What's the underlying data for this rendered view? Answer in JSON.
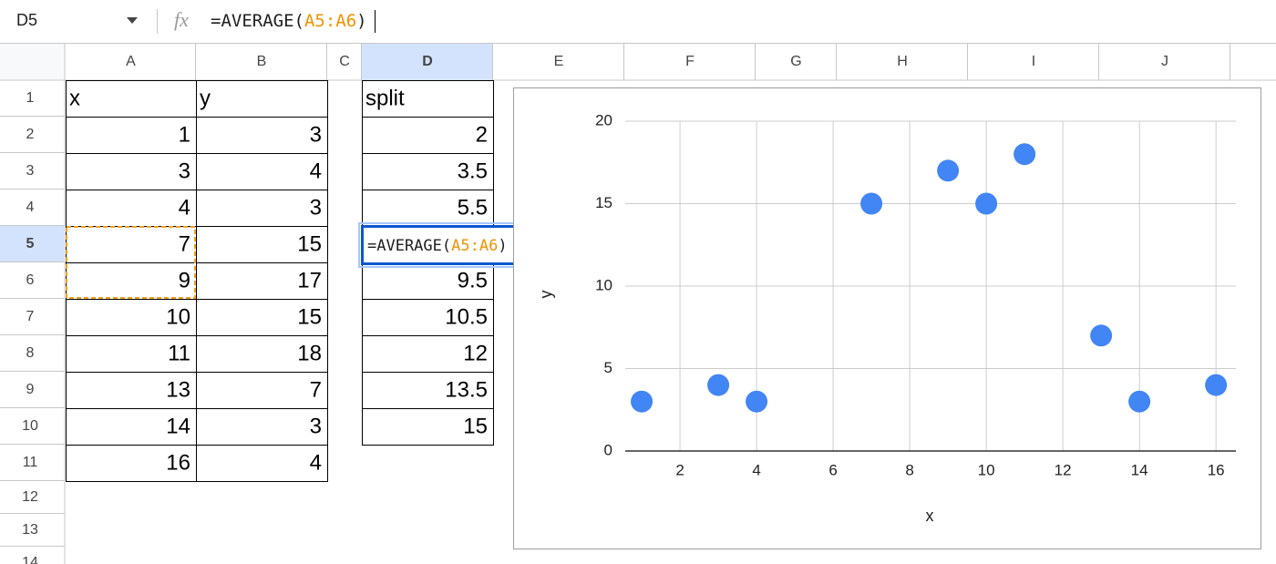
{
  "name_box": "D5",
  "formula_icon": "fx",
  "formula": {
    "prefix": "=AVERAGE(",
    "range": "A5:A6",
    "suffix": ")"
  },
  "columns": [
    "A",
    "B",
    "C",
    "D",
    "E",
    "F",
    "G",
    "H",
    "I",
    "J"
  ],
  "rows": [
    1,
    2,
    3,
    4,
    5,
    6,
    7,
    8,
    9,
    10,
    11,
    12,
    13,
    14
  ],
  "table": {
    "headers": [
      "x",
      "y",
      "split"
    ],
    "x": [
      1,
      3,
      4,
      7,
      9,
      10,
      11,
      13,
      14,
      16
    ],
    "y": [
      3,
      4,
      3,
      15,
      17,
      15,
      18,
      7,
      3,
      4
    ],
    "split": [
      2,
      3.5,
      5.5,
      null,
      9.5,
      10.5,
      12,
      13.5,
      15
    ]
  },
  "chart_data": {
    "type": "scatter",
    "x_label": "x",
    "y_label": "y",
    "x": [
      1,
      3,
      4,
      7,
      9,
      10,
      11,
      13,
      14,
      16
    ],
    "values": [
      3,
      4,
      3,
      15,
      17,
      15,
      18,
      7,
      3,
      4
    ],
    "color": "#4285f4",
    "xlim": [
      0.57,
      16.52
    ],
    "xticks": [
      2,
      4,
      6,
      8,
      10,
      12,
      14,
      16
    ],
    "ylim": [
      0,
      20
    ],
    "yticks": [
      0,
      5,
      10,
      15,
      20
    ],
    "grid": true
  }
}
